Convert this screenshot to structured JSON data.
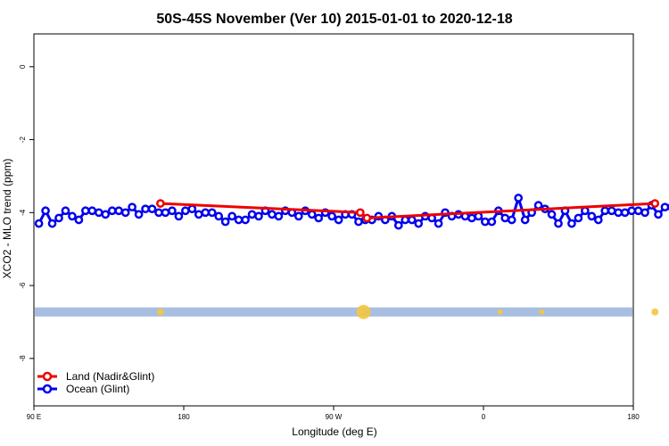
{
  "chart_data": {
    "type": "line",
    "title": "50S-45S November (Ver 10)   2015-01-01 to 2020-12-18",
    "xlabel": "Longitude (deg E)",
    "ylabel": "XCO2 - MLO trend (ppm)",
    "xlim": [
      90,
      450
    ],
    "ylim": [
      -9.3,
      0.9
    ],
    "x_ticks": [
      {
        "value": 90,
        "label": "90 E"
      },
      {
        "value": 180,
        "label": "180"
      },
      {
        "value": 270,
        "label": "90 W"
      },
      {
        "value": 360,
        "label": "0"
      },
      {
        "value": 450,
        "label": "180"
      }
    ],
    "y_ticks": [
      {
        "value": 0,
        "label": "0"
      },
      {
        "value": -2,
        "label": "-2"
      },
      {
        "value": -4,
        "label": "-4"
      },
      {
        "value": -6,
        "label": "-6"
      },
      {
        "value": -8,
        "label": "-8"
      }
    ],
    "grid": false,
    "legend_position": "bottom-left",
    "series": [
      {
        "name": "Ocean (Glint)",
        "color": "#0000ee",
        "points": [
          [
            93,
            -4.3
          ],
          [
            97,
            -3.95
          ],
          [
            101,
            -4.3
          ],
          [
            105,
            -4.15
          ],
          [
            109,
            -3.95
          ],
          [
            113,
            -4.1
          ],
          [
            117,
            -4.2
          ],
          [
            121,
            -3.95
          ],
          [
            125,
            -3.95
          ],
          [
            129,
            -4.0
          ],
          [
            133,
            -4.05
          ],
          [
            137,
            -3.95
          ],
          [
            141,
            -3.95
          ],
          [
            145,
            -4.0
          ],
          [
            149,
            -3.85
          ],
          [
            153,
            -4.05
          ],
          [
            157,
            -3.9
          ],
          [
            161,
            -3.9
          ],
          [
            165,
            -4.0
          ],
          [
            169,
            -4.0
          ],
          [
            173,
            -3.95
          ],
          [
            177,
            -4.1
          ],
          [
            181,
            -3.95
          ],
          [
            185,
            -3.9
          ],
          [
            189,
            -4.05
          ],
          [
            193,
            -4.0
          ],
          [
            197,
            -4.0
          ],
          [
            201,
            -4.1
          ],
          [
            205,
            -4.25
          ],
          [
            209,
            -4.1
          ],
          [
            213,
            -4.2
          ],
          [
            217,
            -4.2
          ],
          [
            221,
            -4.05
          ],
          [
            225,
            -4.1
          ],
          [
            229,
            -3.95
          ],
          [
            233,
            -4.05
          ],
          [
            237,
            -4.1
          ],
          [
            241,
            -3.95
          ],
          [
            245,
            -4.0
          ],
          [
            249,
            -4.1
          ],
          [
            253,
            -3.95
          ],
          [
            257,
            -4.05
          ],
          [
            261,
            -4.15
          ],
          [
            265,
            -4.0
          ],
          [
            269,
            -4.1
          ],
          [
            273,
            -4.2
          ],
          [
            277,
            -4.05
          ],
          [
            281,
            -4.05
          ],
          [
            285,
            -4.25
          ],
          [
            289,
            -4.2
          ],
          [
            293,
            -4.2
          ],
          [
            297,
            -4.1
          ],
          [
            301,
            -4.2
          ],
          [
            305,
            -4.1
          ],
          [
            309,
            -4.35
          ],
          [
            313,
            -4.2
          ],
          [
            317,
            -4.2
          ],
          [
            321,
            -4.3
          ],
          [
            325,
            -4.1
          ],
          [
            329,
            -4.15
          ],
          [
            333,
            -4.3
          ],
          [
            337,
            -4.0
          ],
          [
            341,
            -4.1
          ],
          [
            345,
            -4.05
          ],
          [
            349,
            -4.1
          ],
          [
            353,
            -4.15
          ],
          [
            357,
            -4.1
          ],
          [
            361,
            -4.25
          ],
          [
            365,
            -4.25
          ],
          [
            369,
            -3.95
          ],
          [
            373,
            -4.15
          ],
          [
            377,
            -4.2
          ],
          [
            381,
            -3.6
          ],
          [
            385,
            -4.2
          ],
          [
            389,
            -4.0
          ],
          [
            393,
            -3.8
          ],
          [
            397,
            -3.9
          ],
          [
            401,
            -4.05
          ],
          [
            405,
            -4.3
          ],
          [
            409,
            -3.95
          ],
          [
            413,
            -4.3
          ],
          [
            417,
            -4.15
          ],
          [
            421,
            -3.95
          ],
          [
            425,
            -4.1
          ],
          [
            429,
            -4.2
          ],
          [
            433,
            -3.95
          ],
          [
            437,
            -3.95
          ],
          [
            441,
            -4.0
          ],
          [
            445,
            -4.0
          ],
          [
            449,
            -3.95
          ],
          [
            453,
            -3.95
          ],
          [
            457,
            -4.0
          ],
          [
            461,
            -3.8
          ],
          [
            465,
            -4.05
          ],
          [
            469,
            -3.85
          ],
          [
            473,
            -3.85
          ]
        ]
      },
      {
        "name": "Land (Nadir&Glint)",
        "color": "#ee0000",
        "points": [
          [
            166,
            -3.75
          ],
          [
            286,
            -4.0
          ],
          [
            290,
            -4.15
          ],
          [
            463,
            -3.75
          ]
        ]
      }
    ],
    "coverage_band": {
      "y_range": [
        -6.85,
        -6.6
      ],
      "color": "#a8bee0",
      "marker_color": "#f4c542",
      "markers": [
        {
          "x": 166,
          "size": 1
        },
        {
          "x": 288,
          "size": 3
        },
        {
          "x": 370,
          "size": 0.5
        },
        {
          "x": 395,
          "size": 0.5
        },
        {
          "x": 463,
          "size": 1
        }
      ]
    }
  }
}
